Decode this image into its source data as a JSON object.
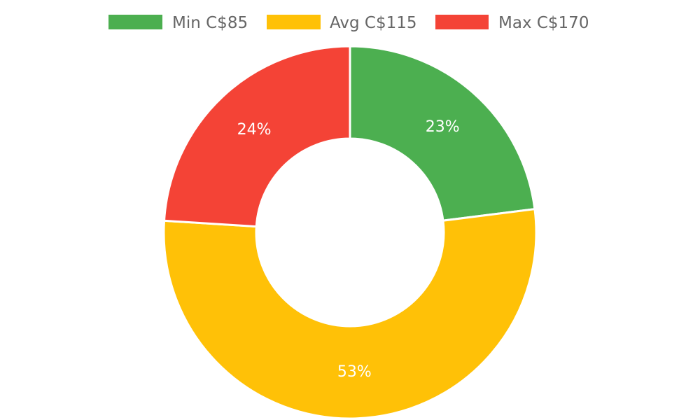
{
  "chart_data": {
    "type": "pie",
    "donut": true,
    "legend_position": "top",
    "slices": [
      {
        "name": "Min C$85",
        "percent": 23,
        "percent_label": "23%",
        "color": "#4caf50"
      },
      {
        "name": "Avg C$115",
        "percent": 53,
        "percent_label": "53%",
        "color": "#ffc107"
      },
      {
        "name": "Max C$170",
        "percent": 24,
        "percent_label": "24%",
        "color": "#f44336"
      }
    ]
  }
}
